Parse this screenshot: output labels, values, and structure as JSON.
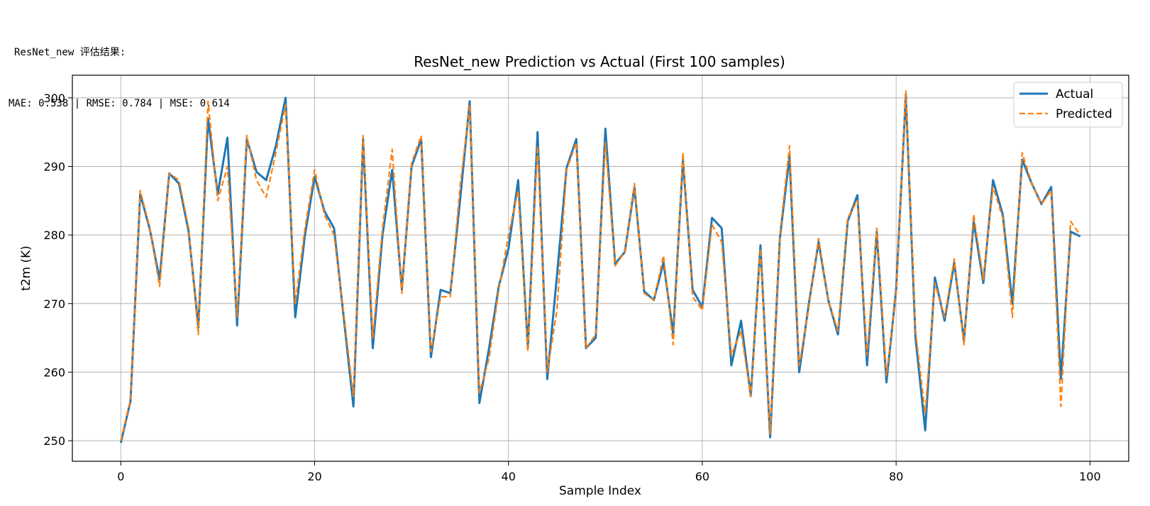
{
  "console": {
    "header": "ResNet_new 评估结果:",
    "metrics": "MAE: 0.538 | RMSE: 0.784 | MSE: 0.614"
  },
  "chart_data": {
    "type": "line",
    "title": "ResNet_new Prediction vs Actual (First 100 samples)",
    "xlabel": "Sample Index",
    "ylabel": "t2m (K)",
    "xlim": [
      -5,
      104
    ],
    "ylim": [
      247,
      303.3
    ],
    "xticks": [
      0,
      20,
      40,
      60,
      80,
      100
    ],
    "yticks": [
      250,
      260,
      270,
      280,
      290,
      300
    ],
    "grid": true,
    "legend_position": "top-right",
    "series": [
      {
        "name": "Actual",
        "color": "#1f77b4",
        "style": "solid",
        "values": [
          249.7,
          255.8,
          286.0,
          280.8,
          273.5,
          289.0,
          287.5,
          280.5,
          266.5,
          297.0,
          286.0,
          294.2,
          266.8,
          294.0,
          289.2,
          288.0,
          293.0,
          300.0,
          268.0,
          280.0,
          288.5,
          283.5,
          281.0,
          268.0,
          255.0,
          294.0,
          263.5,
          280.0,
          289.5,
          272.0,
          290.0,
          294.0,
          262.2,
          272.0,
          271.5,
          285.0,
          299.5,
          255.5,
          263.5,
          272.5,
          278.0,
          288.0,
          263.5,
          295.0,
          259.0,
          274.0,
          289.8,
          294.0,
          263.5,
          265.0,
          295.5,
          275.8,
          277.5,
          287.0,
          271.8,
          270.5,
          276.0,
          265.5,
          291.0,
          272.0,
          269.5,
          282.5,
          281.0,
          261.0,
          267.5,
          256.5,
          278.5,
          250.5,
          279.5,
          291.5,
          260.0,
          270.0,
          279.0,
          270.5,
          265.5,
          282.0,
          285.8,
          261.0,
          280.5,
          258.5,
          272.0,
          300.5,
          265.0,
          251.5,
          273.8,
          267.5,
          276.0,
          264.5,
          282.0,
          273.0,
          288.0,
          283.0,
          270.0,
          291.0,
          287.5,
          284.5,
          287.0,
          259.0,
          280.5,
          279.8
        ]
      },
      {
        "name": "Predicted",
        "color": "#ff7f0e",
        "style": "dashed",
        "values": [
          250.0,
          256.0,
          286.5,
          281.0,
          272.5,
          289.0,
          288.0,
          281.0,
          265.5,
          299.5,
          285.0,
          290.0,
          268.0,
          294.5,
          288.0,
          285.5,
          292.0,
          299.0,
          270.0,
          281.0,
          289.5,
          283.0,
          280.0,
          268.5,
          256.5,
          294.5,
          265.0,
          281.0,
          292.5,
          271.5,
          290.5,
          294.5,
          263.0,
          271.0,
          271.0,
          287.0,
          299.0,
          257.0,
          262.0,
          272.0,
          280.0,
          286.5,
          263.0,
          293.0,
          260.0,
          269.0,
          289.5,
          293.5,
          263.5,
          265.5,
          293.5,
          275.5,
          277.5,
          287.5,
          271.5,
          270.5,
          277.0,
          264.0,
          292.0,
          271.0,
          269.0,
          281.5,
          279.0,
          262.5,
          266.0,
          256.5,
          278.0,
          251.0,
          280.0,
          293.0,
          261.0,
          269.5,
          279.5,
          270.5,
          266.0,
          282.5,
          285.0,
          262.5,
          281.0,
          259.5,
          271.5,
          301.0,
          266.0,
          254.0,
          273.0,
          268.0,
          276.5,
          264.0,
          283.0,
          273.5,
          287.0,
          282.5,
          268.0,
          292.0,
          287.5,
          284.5,
          286.5,
          255.0,
          282.0,
          280.0
        ]
      }
    ]
  }
}
